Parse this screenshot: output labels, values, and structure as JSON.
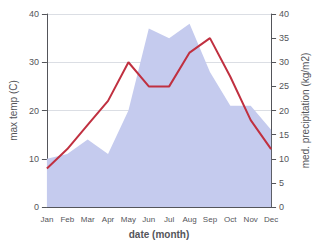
{
  "chart_data": {
    "type": "line",
    "xlabel": "date (month)",
    "ylabel": "max temp (C)",
    "y2label": "med. precipitation (kg/m2)",
    "categories": [
      "Jan",
      "Feb",
      "Mar",
      "Apr",
      "May",
      "Jun",
      "Jul",
      "Aug",
      "Sep",
      "Oct",
      "Nov",
      "Dec"
    ],
    "series": [
      {
        "type": "area",
        "color": "#c5cbee",
        "axis": "y2",
        "values": [
          10,
          11,
          14,
          11,
          20,
          37,
          35,
          38,
          28,
          21,
          21,
          16
        ]
      },
      {
        "type": "line",
        "color": "#c03040",
        "values": [
          8,
          12,
          17,
          22,
          30,
          25,
          25,
          32,
          35,
          27,
          18,
          12
        ]
      }
    ],
    "ylim": [
      0,
      40
    ],
    "yticks": [
      0,
      10,
      20,
      30,
      40
    ],
    "y2lim": [
      0,
      40
    ],
    "y2ticks": [
      0,
      5,
      10,
      15,
      20,
      25,
      30,
      35,
      40
    ],
    "grid": true
  }
}
